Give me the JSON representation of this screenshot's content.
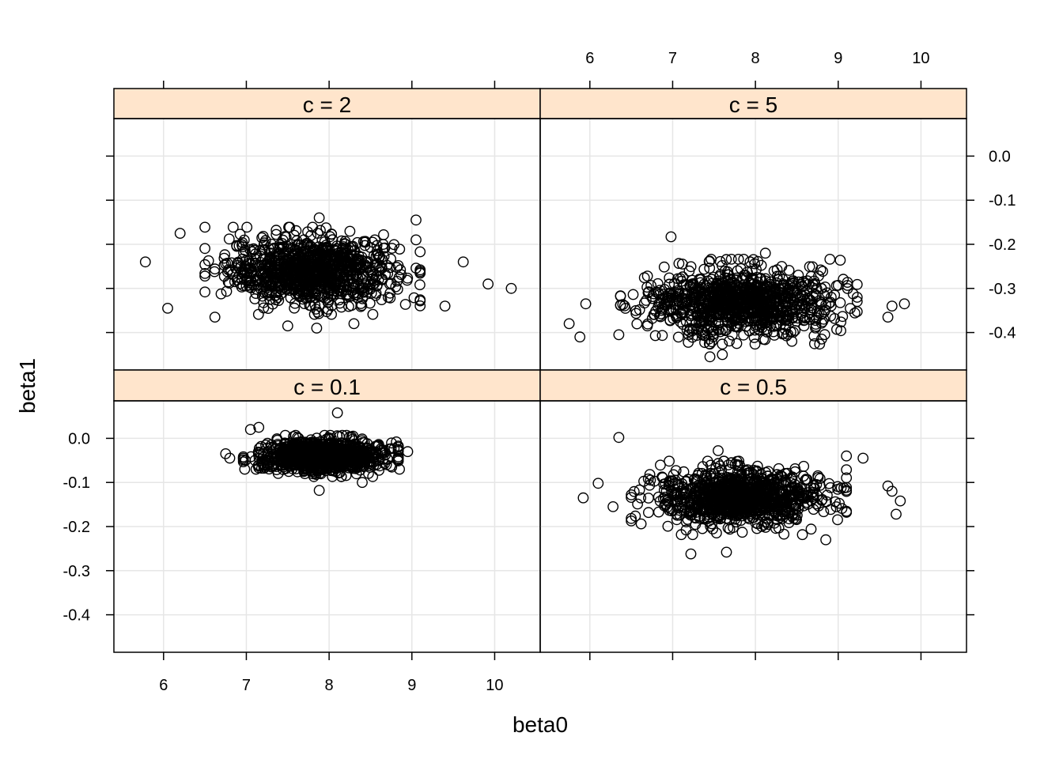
{
  "chart_data": {
    "type": "scatter",
    "layout": "lattice 2x2",
    "xlabel": "beta0",
    "ylabel": "beta1",
    "xlim": [
      5.4,
      10.55
    ],
    "ylim": [
      -0.485,
      0.085
    ],
    "x_ticks": [
      6,
      7,
      8,
      9,
      10
    ],
    "x_tick_labels": [
      "6",
      "7",
      "8",
      "9",
      "10"
    ],
    "y_ticks": [
      0.0,
      -0.1,
      -0.2,
      -0.3,
      -0.4
    ],
    "y_tick_labels": [
      "0.0",
      "-0.1",
      "-0.2",
      "-0.3",
      "-0.4"
    ],
    "grid": true,
    "marker": "open-circle",
    "colors": {
      "strip": "#ffe5cc",
      "grid": "#e6e6e6",
      "marker": "#000000",
      "frame": "#000000"
    },
    "panels": [
      {
        "strip": "c = 2",
        "position": "top-left",
        "n_points": 1000,
        "center": [
          7.8,
          -0.26
        ],
        "spread": [
          0.5,
          0.038
        ],
        "outliers": [
          [
            5.78,
            -0.24
          ],
          [
            10.2,
            -0.3
          ],
          [
            9.92,
            -0.29
          ],
          [
            9.62,
            -0.24
          ],
          [
            9.05,
            -0.145
          ],
          [
            9.05,
            -0.19
          ],
          [
            7.88,
            -0.14
          ],
          [
            7.85,
            -0.39
          ],
          [
            7.5,
            -0.385
          ],
          [
            6.2,
            -0.175
          ],
          [
            6.05,
            -0.345
          ],
          [
            6.62,
            -0.365
          ],
          [
            9.4,
            -0.34
          ],
          [
            8.3,
            -0.38
          ]
        ]
      },
      {
        "strip": "c = 5",
        "position": "top-right",
        "n_points": 1000,
        "center": [
          7.8,
          -0.33
        ],
        "spread": [
          0.55,
          0.037
        ],
        "outliers": [
          [
            5.75,
            -0.38
          ],
          [
            5.88,
            -0.41
          ],
          [
            5.95,
            -0.335
          ],
          [
            9.8,
            -0.335
          ],
          [
            9.65,
            -0.34
          ],
          [
            9.6,
            -0.365
          ],
          [
            6.98,
            -0.183
          ],
          [
            7.6,
            -0.45
          ],
          [
            7.45,
            -0.455
          ],
          [
            8.8,
            -0.415
          ],
          [
            8.12,
            -0.22
          ],
          [
            6.35,
            -0.405
          ]
        ]
      },
      {
        "strip": "c = 0.1",
        "position": "bottom-left",
        "n_points": 1000,
        "center": [
          7.9,
          -0.04
        ],
        "spread": [
          0.36,
          0.018
        ],
        "outliers": [
          [
            6.75,
            -0.035
          ],
          [
            6.98,
            -0.07
          ],
          [
            7.05,
            0.02
          ],
          [
            7.15,
            0.025
          ],
          [
            8.1,
            0.058
          ],
          [
            7.88,
            -0.118
          ],
          [
            8.95,
            -0.03
          ],
          [
            8.85,
            -0.07
          ],
          [
            6.8,
            -0.045
          ],
          [
            8.4,
            -0.1
          ]
        ]
      },
      {
        "strip": "c = 0.5",
        "position": "bottom-right",
        "n_points": 1000,
        "center": [
          7.8,
          -0.135
        ],
        "spread": [
          0.5,
          0.032
        ],
        "outliers": [
          [
            5.92,
            -0.135
          ],
          [
            6.35,
            0.002
          ],
          [
            6.28,
            -0.155
          ],
          [
            6.1,
            -0.102
          ],
          [
            9.75,
            -0.142
          ],
          [
            9.7,
            -0.172
          ],
          [
            9.6,
            -0.108
          ],
          [
            9.65,
            -0.12
          ],
          [
            7.22,
            -0.262
          ],
          [
            7.65,
            -0.258
          ],
          [
            8.85,
            -0.23
          ],
          [
            7.55,
            -0.028
          ],
          [
            9.3,
            -0.045
          ],
          [
            9.1,
            -0.04
          ]
        ]
      }
    ]
  }
}
